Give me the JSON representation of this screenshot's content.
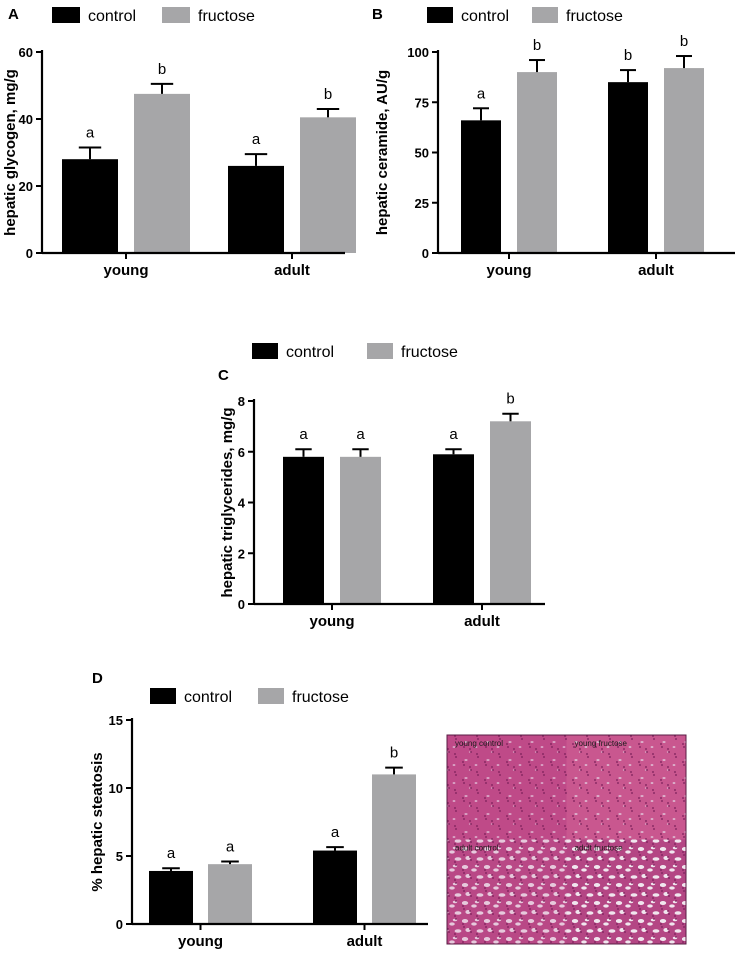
{
  "colors": {
    "control": "#000000",
    "fructose": "#a6a6a8",
    "histo_base": "#c24b86",
    "histo_dark": "#7a1f5a",
    "histo_light": "#e8c2d8"
  },
  "chart_data": [
    {
      "panel": "A",
      "type": "bar",
      "categories": [
        "young",
        "adult"
      ],
      "series": [
        {
          "name": "control",
          "values": [
            28,
            26
          ],
          "errors": [
            3.5,
            3.5
          ],
          "sig": [
            "a",
            "a"
          ]
        },
        {
          "name": "fructose",
          "values": [
            47.5,
            40.5
          ],
          "errors": [
            3,
            2.5
          ],
          "sig": [
            "b",
            "b"
          ]
        }
      ],
      "ylabel": "hepatic glycogen, mg/g",
      "ylim": [
        0,
        60
      ],
      "yticks": [
        0,
        20,
        40,
        60
      ]
    },
    {
      "panel": "B",
      "type": "bar",
      "categories": [
        "young",
        "adult"
      ],
      "series": [
        {
          "name": "control",
          "values": [
            66,
            85
          ],
          "errors": [
            6,
            6
          ],
          "sig": [
            "a",
            "b"
          ]
        },
        {
          "name": "fructose",
          "values": [
            90,
            92
          ],
          "errors": [
            6,
            6
          ],
          "sig": [
            "b",
            "b"
          ]
        }
      ],
      "ylabel": "hepatic ceramide, AU/g",
      "ylim": [
        0,
        100
      ],
      "yticks": [
        0,
        25,
        50,
        75,
        100
      ]
    },
    {
      "panel": "C",
      "type": "bar",
      "categories": [
        "young",
        "adult"
      ],
      "series": [
        {
          "name": "control",
          "values": [
            5.8,
            5.9
          ],
          "errors": [
            0.3,
            0.2
          ],
          "sig": [
            "a",
            "a"
          ]
        },
        {
          "name": "fructose",
          "values": [
            5.8,
            7.2
          ],
          "errors": [
            0.3,
            0.3
          ],
          "sig": [
            "a",
            "b"
          ]
        }
      ],
      "ylabel": "hepatic triglycerides, mg/g",
      "ylim": [
        0,
        8
      ],
      "yticks": [
        0,
        2,
        4,
        6,
        8
      ]
    },
    {
      "panel": "D",
      "type": "bar",
      "categories": [
        "young",
        "adult"
      ],
      "series": [
        {
          "name": "control",
          "values": [
            3.9,
            5.4
          ],
          "errors": [
            0.2,
            0.25
          ],
          "sig": [
            "a",
            "a"
          ]
        },
        {
          "name": "fructose",
          "values": [
            4.4,
            11.0
          ],
          "errors": [
            0.2,
            0.5
          ],
          "sig": [
            "a",
            "b"
          ]
        }
      ],
      "ylabel": "% hepatic steatosis",
      "ylim": [
        0,
        15
      ],
      "yticks": [
        0,
        5,
        10,
        15
      ]
    }
  ],
  "micrograph": {
    "labels": [
      "young control",
      "young fructose",
      "adult control",
      "adult fructose"
    ]
  }
}
